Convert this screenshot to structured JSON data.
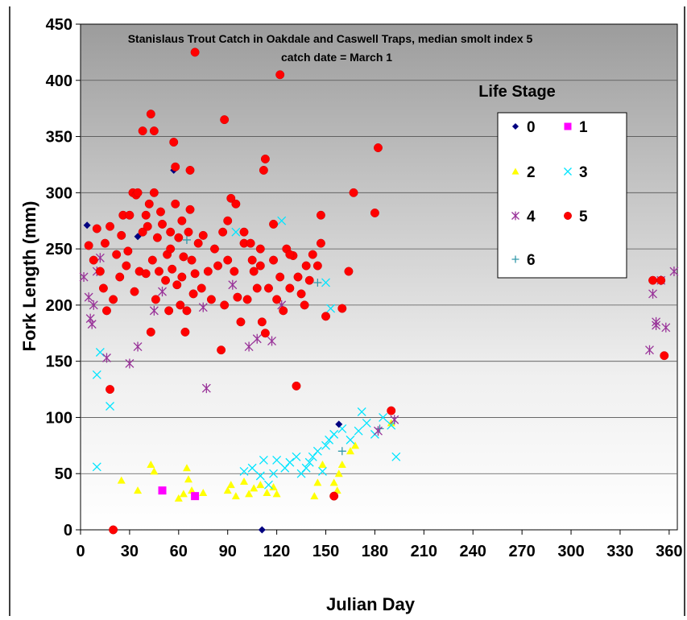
{
  "chart_data": {
    "type": "scatter",
    "title": "Stanislaus Trout Catch in Oakdale and Caswell Traps, median smolt index 5",
    "subtitle": "catch date = March 1",
    "xlabel": "Julian Day",
    "ylabel": "Fork Length (mm)",
    "xlim": [
      0,
      365
    ],
    "ylim": [
      0,
      450
    ],
    "x_ticks": [
      "0",
      "30",
      "60",
      "90",
      "120",
      "150",
      "180",
      "210",
      "240",
      "270",
      "300",
      "330",
      "360"
    ],
    "y_ticks": [
      "0",
      "50",
      "100",
      "150",
      "200",
      "250",
      "300",
      "350",
      "400",
      "450"
    ],
    "grid": "horizontal",
    "legend_title": "Life Stage",
    "legend_position": "top-right",
    "series": [
      {
        "name": "0",
        "color": "#000080",
        "marker": "diamond",
        "points": [
          [
            4,
            271
          ],
          [
            35,
            261
          ],
          [
            57,
            320
          ],
          [
            111,
            0
          ],
          [
            158,
            94
          ]
        ]
      },
      {
        "name": "1",
        "color": "#ff00ff",
        "marker": "square",
        "points": [
          [
            50,
            35
          ],
          [
            70,
            30
          ]
        ]
      },
      {
        "name": "2",
        "color": "#ffff00",
        "marker": "triangle",
        "points": [
          [
            25,
            44
          ],
          [
            35,
            35
          ],
          [
            43,
            58
          ],
          [
            45,
            52
          ],
          [
            60,
            28
          ],
          [
            63,
            32
          ],
          [
            65,
            55
          ],
          [
            66,
            45
          ],
          [
            68,
            35
          ],
          [
            75,
            33
          ],
          [
            90,
            35
          ],
          [
            92,
            40
          ],
          [
            95,
            30
          ],
          [
            100,
            43
          ],
          [
            103,
            32
          ],
          [
            106,
            37
          ],
          [
            110,
            40
          ],
          [
            114,
            33
          ],
          [
            118,
            38
          ],
          [
            120,
            32
          ],
          [
            143,
            30
          ],
          [
            145,
            42
          ],
          [
            148,
            58
          ],
          [
            155,
            42
          ],
          [
            157,
            35
          ],
          [
            158,
            50
          ],
          [
            160,
            58
          ],
          [
            165,
            70
          ],
          [
            168,
            75
          ],
          [
            190,
            95
          ]
        ]
      },
      {
        "name": "3",
        "color": "#00e5ff",
        "marker": "x",
        "points": [
          [
            10,
            138
          ],
          [
            12,
            158
          ],
          [
            18,
            110
          ],
          [
            10,
            56
          ],
          [
            95,
            265
          ],
          [
            100,
            52
          ],
          [
            105,
            55
          ],
          [
            110,
            48
          ],
          [
            112,
            62
          ],
          [
            115,
            40
          ],
          [
            118,
            50
          ],
          [
            120,
            62
          ],
          [
            123,
            275
          ],
          [
            125,
            55
          ],
          [
            128,
            60
          ],
          [
            132,
            65
          ],
          [
            135,
            50
          ],
          [
            138,
            55
          ],
          [
            140,
            60
          ],
          [
            142,
            65
          ],
          [
            145,
            70
          ],
          [
            148,
            52
          ],
          [
            150,
            75
          ],
          [
            152,
            80
          ],
          [
            155,
            85
          ],
          [
            160,
            90
          ],
          [
            165,
            80
          ],
          [
            170,
            88
          ],
          [
            172,
            105
          ],
          [
            175,
            95
          ],
          [
            180,
            85
          ],
          [
            185,
            100
          ],
          [
            190,
            93
          ],
          [
            193,
            65
          ],
          [
            150,
            220
          ],
          [
            153,
            197
          ]
        ]
      },
      {
        "name": "4",
        "color": "#993399",
        "marker": "star",
        "points": [
          [
            2,
            225
          ],
          [
            5,
            207
          ],
          [
            6,
            188
          ],
          [
            7,
            183
          ],
          [
            8,
            200
          ],
          [
            10,
            230
          ],
          [
            12,
            242
          ],
          [
            16,
            153
          ],
          [
            30,
            148
          ],
          [
            35,
            163
          ],
          [
            45,
            195
          ],
          [
            50,
            212
          ],
          [
            75,
            198
          ],
          [
            77,
            126
          ],
          [
            93,
            218
          ],
          [
            103,
            163
          ],
          [
            108,
            170
          ],
          [
            117,
            168
          ],
          [
            123,
            200
          ],
          [
            182,
            88
          ],
          [
            192,
            98
          ],
          [
            348,
            160
          ],
          [
            350,
            210
          ],
          [
            352,
            185
          ],
          [
            352,
            182
          ],
          [
            355,
            222
          ],
          [
            358,
            180
          ],
          [
            363,
            230
          ]
        ]
      },
      {
        "name": "5",
        "color": "#ff0000",
        "marker": "circle",
        "points": [
          [
            20,
            0
          ],
          [
            18,
            125
          ],
          [
            38,
            355
          ],
          [
            43,
            370
          ],
          [
            45,
            355
          ],
          [
            57,
            345
          ],
          [
            58,
            323
          ],
          [
            67,
            320
          ],
          [
            70,
            425
          ],
          [
            88,
            365
          ],
          [
            112,
            320
          ],
          [
            113,
            330
          ],
          [
            122,
            405
          ],
          [
            132,
            128
          ],
          [
            147,
            280
          ],
          [
            155,
            30
          ],
          [
            167,
            300
          ],
          [
            180,
            282
          ],
          [
            182,
            340
          ],
          [
            190,
            106
          ],
          [
            164,
            230
          ],
          [
            350,
            222
          ],
          [
            355,
            222
          ],
          [
            357,
            155
          ],
          [
            5,
            253
          ],
          [
            8,
            240
          ],
          [
            10,
            268
          ],
          [
            12,
            230
          ],
          [
            14,
            215
          ],
          [
            15,
            255
          ],
          [
            16,
            195
          ],
          [
            18,
            270
          ],
          [
            20,
            205
          ],
          [
            22,
            245
          ],
          [
            24,
            225
          ],
          [
            25,
            262
          ],
          [
            26,
            280
          ],
          [
            28,
            235
          ],
          [
            29,
            248
          ],
          [
            30,
            280
          ],
          [
            32,
            300
          ],
          [
            33,
            212
          ],
          [
            34,
            298
          ],
          [
            36,
            230
          ],
          [
            38,
            265
          ],
          [
            40,
            228
          ],
          [
            41,
            270
          ],
          [
            42,
            290
          ],
          [
            43,
            176
          ],
          [
            44,
            240
          ],
          [
            45,
            300
          ],
          [
            46,
            205
          ],
          [
            47,
            260
          ],
          [
            48,
            230
          ],
          [
            49,
            283
          ],
          [
            50,
            272
          ],
          [
            52,
            222
          ],
          [
            53,
            245
          ],
          [
            54,
            195
          ],
          [
            55,
            265
          ],
          [
            56,
            232
          ],
          [
            58,
            290
          ],
          [
            59,
            218
          ],
          [
            60,
            260
          ],
          [
            61,
            200
          ],
          [
            62,
            225
          ],
          [
            63,
            243
          ],
          [
            64,
            176
          ],
          [
            65,
            195
          ],
          [
            66,
            265
          ],
          [
            67,
            285
          ],
          [
            68,
            240
          ],
          [
            69,
            210
          ],
          [
            70,
            228
          ],
          [
            72,
            255
          ],
          [
            74,
            215
          ],
          [
            75,
            262
          ],
          [
            78,
            230
          ],
          [
            80,
            205
          ],
          [
            82,
            250
          ],
          [
            84,
            235
          ],
          [
            86,
            160
          ],
          [
            87,
            265
          ],
          [
            88,
            200
          ],
          [
            90,
            240
          ],
          [
            92,
            295
          ],
          [
            94,
            230
          ],
          [
            96,
            207
          ],
          [
            98,
            185
          ],
          [
            100,
            255
          ],
          [
            102,
            205
          ],
          [
            104,
            255
          ],
          [
            106,
            230
          ],
          [
            108,
            215
          ],
          [
            110,
            250
          ],
          [
            111,
            185
          ],
          [
            113,
            175
          ],
          [
            115,
            215
          ],
          [
            118,
            240
          ],
          [
            120,
            205
          ],
          [
            122,
            225
          ],
          [
            124,
            195
          ],
          [
            126,
            250
          ],
          [
            128,
            215
          ],
          [
            130,
            244
          ],
          [
            133,
            225
          ],
          [
            135,
            210
          ],
          [
            137,
            200
          ],
          [
            140,
            222
          ],
          [
            142,
            245
          ],
          [
            145,
            235
          ],
          [
            147,
            255
          ],
          [
            150,
            190
          ],
          [
            160,
            197
          ],
          [
            35,
            300
          ],
          [
            40,
            280
          ],
          [
            55,
            250
          ],
          [
            62,
            275
          ],
          [
            90,
            275
          ],
          [
            95,
            290
          ],
          [
            100,
            265
          ],
          [
            105,
            240
          ],
          [
            110,
            235
          ],
          [
            118,
            272
          ],
          [
            128,
            245
          ],
          [
            138,
            235
          ]
        ]
      },
      {
        "name": "6",
        "color": "#3399aa",
        "marker": "plus",
        "points": [
          [
            65,
            258
          ],
          [
            145,
            220
          ],
          [
            160,
            70
          ],
          [
            183,
            90
          ]
        ]
      }
    ]
  }
}
